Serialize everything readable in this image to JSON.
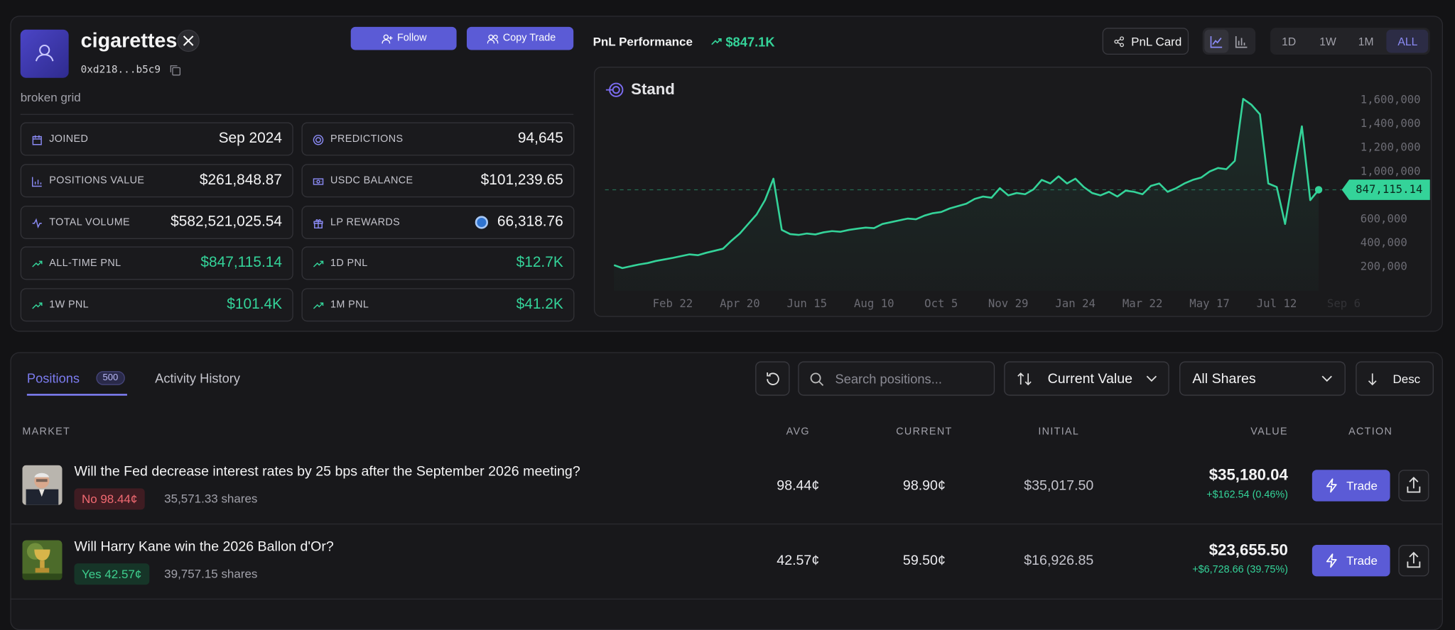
{
  "profile": {
    "name": "cigarettes",
    "address": "0xd218...b5c9",
    "bio": "broken grid",
    "follow": "Follow",
    "copy_trade": "Copy Trade"
  },
  "stats": [
    {
      "label": "JOINED",
      "value": "Sep 2024"
    },
    {
      "label": "PREDICTIONS",
      "value": "94,645"
    },
    {
      "label": "POSITIONS VALUE",
      "value": "$261,848.87"
    },
    {
      "label": "USDC BALANCE",
      "value": "$101,239.65"
    },
    {
      "label": "TOTAL VOLUME",
      "value": "$582,521,025.54"
    },
    {
      "label": "LP REWARDS",
      "value": "66,318.76"
    },
    {
      "label": "ALL-TIME PNL",
      "value": "$847,115.14"
    },
    {
      "label": "1D PNL",
      "value": "$12.7K"
    },
    {
      "label": "1W PNL",
      "value": "$101.4K"
    },
    {
      "label": "1M PNL",
      "value": "$41.2K"
    }
  ],
  "pnl": {
    "title": "PnL Performance",
    "total": "$847.1K",
    "card_button": "PnL Card",
    "ranges": [
      "1D",
      "1W",
      "1M",
      "ALL"
    ]
  },
  "chart_data": {
    "type": "line",
    "title": "Stand",
    "color": "#34d399",
    "categories": [
      null,
      null,
      null,
      null,
      null,
      null,
      null,
      "Feb 22",
      null,
      null,
      null,
      null,
      null,
      null,
      null,
      "Apr 20",
      null,
      null,
      null,
      null,
      null,
      null,
      null,
      "Jun 15",
      null,
      null,
      null,
      null,
      null,
      null,
      null,
      "Aug 10",
      null,
      null,
      null,
      null,
      null,
      null,
      null,
      "Oct 5",
      null,
      null,
      null,
      null,
      null,
      null,
      null,
      "Nov 29",
      null,
      null,
      null,
      null,
      null,
      null,
      null,
      "Jan 24",
      null,
      null,
      null,
      null,
      null,
      null,
      null,
      "Mar 22",
      null,
      null,
      null,
      null,
      null,
      null,
      null,
      "May 17",
      null,
      null,
      null,
      null,
      null,
      null,
      null,
      "Jul 12",
      null,
      null,
      null,
      null,
      null,
      null,
      null,
      "Sep 6"
    ],
    "values": [
      215000,
      190000,
      205000,
      220000,
      232000,
      250000,
      262000,
      275000,
      290000,
      305000,
      298000,
      318000,
      335000,
      352000,
      420000,
      480000,
      560000,
      640000,
      760000,
      940000,
      510000,
      475000,
      468000,
      480000,
      472000,
      490000,
      500000,
      495000,
      510000,
      520000,
      530000,
      525000,
      560000,
      575000,
      590000,
      605000,
      600000,
      630000,
      650000,
      660000,
      690000,
      710000,
      730000,
      770000,
      790000,
      780000,
      860000,
      800000,
      820000,
      810000,
      850000,
      930000,
      900000,
      960000,
      900000,
      940000,
      870000,
      820000,
      800000,
      830000,
      790000,
      840000,
      830000,
      810000,
      880000,
      900000,
      830000,
      860000,
      900000,
      930000,
      950000,
      1000000,
      1030000,
      1020000,
      1090000,
      1610000,
      1560000,
      1480000,
      900000,
      870000,
      560000,
      980000,
      1380000,
      760000,
      847115.14,
      null,
      null,
      null
    ],
    "ylim": [
      0,
      1750000
    ],
    "yticks": [
      {
        "value": 200000,
        "label": "200,000"
      },
      {
        "value": 400000,
        "label": "400,000"
      },
      {
        "value": 600000,
        "label": "600,000"
      },
      {
        "value": 1000000,
        "label": "1,000,000"
      },
      {
        "value": 1200000,
        "label": "1,200,000"
      },
      {
        "value": 1400000,
        "label": "1,400,000"
      },
      {
        "value": 1600000,
        "label": "1,600,000"
      }
    ],
    "grid": false,
    "reference": {
      "value": 847115.14,
      "label": "847,115.14"
    }
  },
  "positions": {
    "tabs": [
      "Positions",
      "Activity History"
    ],
    "count": 500,
    "search_placeholder": "Search positions...",
    "sort": "Current Value",
    "filter": "All Shares",
    "order": "Desc",
    "columns": [
      "MARKET",
      "AVG",
      "CURRENT",
      "INITIAL",
      "VALUE",
      "ACTION"
    ],
    "rows": [
      {
        "title": "Will the Fed decrease interest rates by 25 bps after the September 2026 meeting?",
        "outcome": "No 98.44¢",
        "shares": "35,571.33 shares",
        "avg": "98.44¢",
        "current": "98.90¢",
        "initial": "$35,017.50",
        "value": "$35,180.04",
        "change": "+$162.54 (0.46%)",
        "action": "Trade"
      },
      {
        "title": "Will Harry Kane win the 2026 Ballon d'Or?",
        "outcome": "Yes 42.57¢",
        "shares": "39,757.15 shares",
        "avg": "42.57¢",
        "current": "59.50¢",
        "initial": "$16,926.85",
        "value": "$23,655.50",
        "change": "+$6,728.66 (39.75%)",
        "action": "Trade"
      }
    ]
  }
}
